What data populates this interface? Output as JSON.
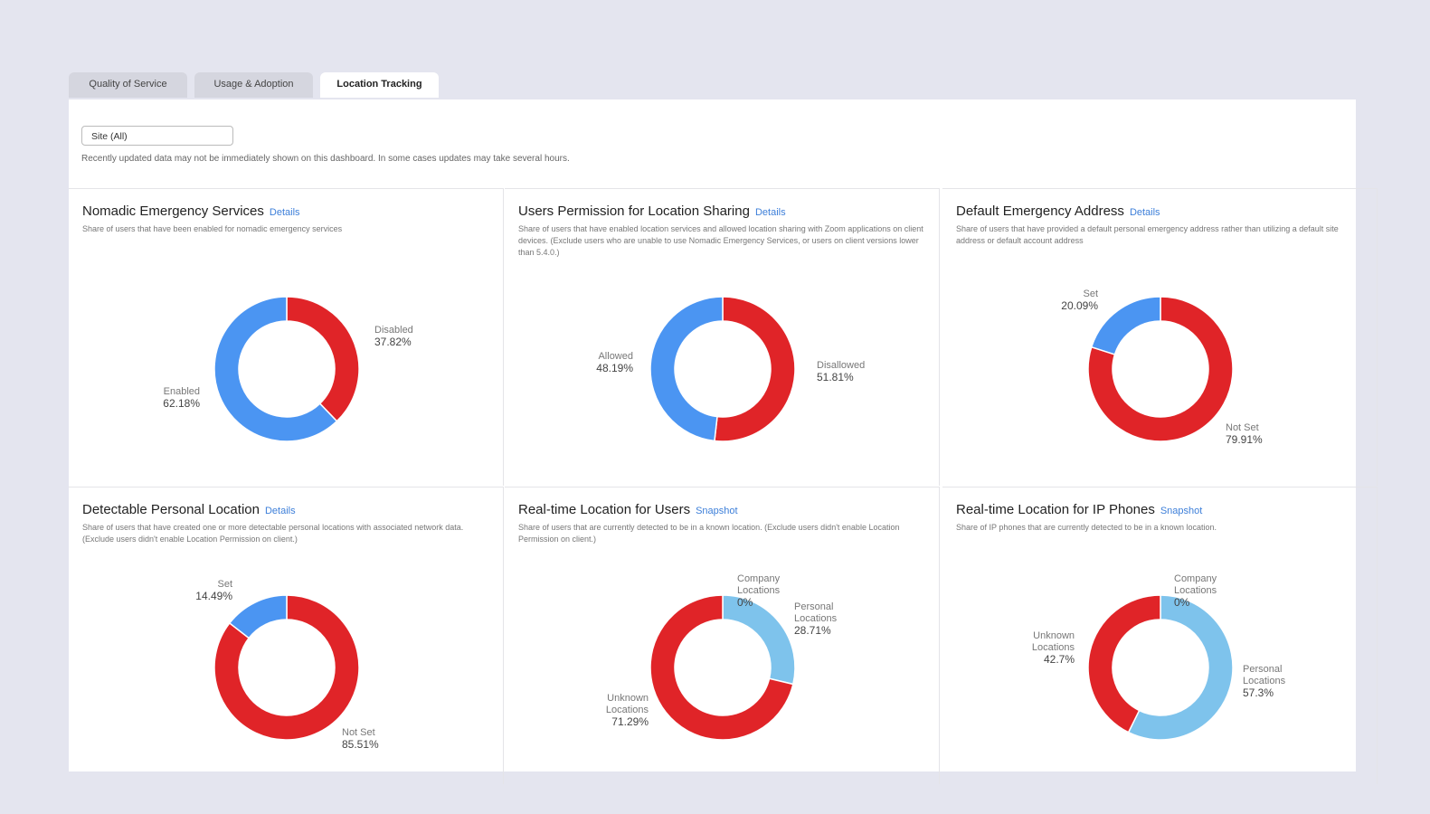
{
  "tabs": [
    {
      "label": "Quality of Service"
    },
    {
      "label": "Usage & Adoption"
    },
    {
      "label": "Location Tracking",
      "active": true
    }
  ],
  "filter": {
    "value": "Site (All)"
  },
  "notice": "Recently updated data may not be immediately shown on this dashboard. In some cases updates may take several hours.",
  "colors": {
    "red": "#e02428",
    "blue": "#4b95f2",
    "light_blue": "#7ec3ec"
  },
  "cards": [
    {
      "title": "Nomadic Emergency Services",
      "link": "Details",
      "desc": "Share of users that have been enabled for nomadic emergency services",
      "slices": [
        {
          "name": "Disabled",
          "value": "37.82%",
          "pct": 37.82,
          "color": "red"
        },
        {
          "name": "Enabled",
          "value": "62.18%",
          "pct": 62.18,
          "color": "blue"
        }
      ]
    },
    {
      "title": "Users Permission for Location Sharing",
      "link": "Details",
      "desc": "Share of users that have enabled location services and allowed location sharing with Zoom applications on client devices. (Exclude users who are unable to use Nomadic Emergency Services, or users on client versions lower than 5.4.0.)",
      "slices": [
        {
          "name": "Disallowed",
          "value": "51.81%",
          "pct": 51.81,
          "color": "red"
        },
        {
          "name": "Allowed",
          "value": "48.19%",
          "pct": 48.19,
          "color": "blue"
        }
      ]
    },
    {
      "title": "Default Emergency Address",
      "link": "Details",
      "desc": "Share of users that have provided a default personal emergency address rather than utilizing a default site address or default account address",
      "slices": [
        {
          "name": "Not Set",
          "value": "79.91%",
          "pct": 79.91,
          "color": "red"
        },
        {
          "name": "Set",
          "value": "20.09%",
          "pct": 20.09,
          "color": "blue"
        }
      ]
    },
    {
      "title": "Detectable Personal Location",
      "link": "Details",
      "desc": "Share of users that have created one or more detectable personal locations with associated network data. (Exclude users didn't enable Location Permission on client.)",
      "slices": [
        {
          "name": "Not Set",
          "value": "85.51%",
          "pct": 85.51,
          "color": "red"
        },
        {
          "name": "Set",
          "value": "14.49%",
          "pct": 14.49,
          "color": "blue"
        }
      ]
    },
    {
      "title": "Real-time Location for Users",
      "link": "Snapshot",
      "desc": "Share of users that are currently detected to be in a known location. (Exclude users didn't enable Location Permission on client.)",
      "slices": [
        {
          "name": "Company Locations",
          "value": "0%",
          "pct": 0,
          "color": "blue"
        },
        {
          "name": "Personal Locations",
          "value": "28.71%",
          "pct": 28.71,
          "color": "light_blue"
        },
        {
          "name": "Unknown Locations",
          "value": "71.29%",
          "pct": 71.29,
          "color": "red"
        }
      ]
    },
    {
      "title": "Real-time Location for IP Phones",
      "link": "Snapshot",
      "desc": "Share of IP phones that are currently detected to be in a known location.",
      "slices": [
        {
          "name": "Company Locations",
          "value": "0%",
          "pct": 0,
          "color": "blue"
        },
        {
          "name": "Personal Locations",
          "value": "57.3%",
          "pct": 57.3,
          "color": "light_blue"
        },
        {
          "name": "Unknown Locations",
          "value": "42.7%",
          "pct": 42.7,
          "color": "red"
        }
      ]
    }
  ]
}
